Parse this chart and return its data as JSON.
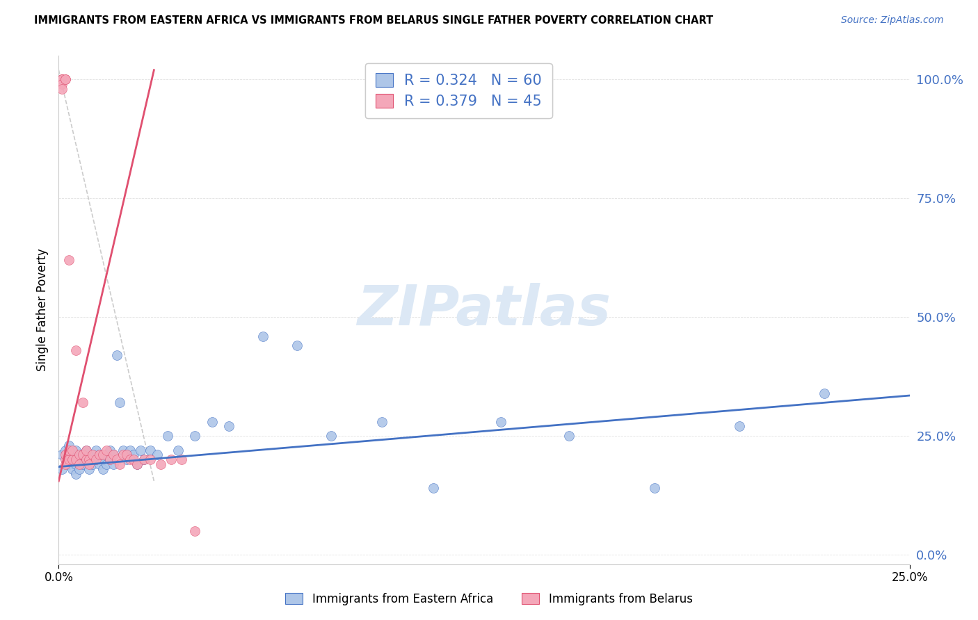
{
  "title": "IMMIGRANTS FROM EASTERN AFRICA VS IMMIGRANTS FROM BELARUS SINGLE FATHER POVERTY CORRELATION CHART",
  "source": "Source: ZipAtlas.com",
  "ylabel": "Single Father Poverty",
  "legend_label_blue": "Immigrants from Eastern Africa",
  "legend_label_pink": "Immigrants from Belarus",
  "color_blue": "#aec6e8",
  "color_pink": "#f4a7b9",
  "color_blue_line": "#4472c4",
  "color_pink_line": "#e05070",
  "color_dashed": "#cccccc",
  "color_text_blue": "#4472c4",
  "color_grid": "#e0e0e0",
  "watermark_color": "#dce8f5",
  "xlim": [
    0.0,
    0.25
  ],
  "ylim": [
    -0.02,
    1.05
  ],
  "ytick_vals": [
    0.0,
    0.25,
    0.5,
    0.75,
    1.0
  ],
  "ytick_labels": [
    "0.0%",
    "25.0%",
    "50.0%",
    "75.0%",
    "100.0%"
  ],
  "xtick_vals": [
    0.0,
    0.25
  ],
  "xtick_labels": [
    "0.0%",
    "25.0%"
  ],
  "legend_blue_text": "R = 0.324   N = 60",
  "legend_pink_text": "R = 0.379   N = 45",
  "blue_line_x": [
    0.0,
    0.25
  ],
  "blue_line_y": [
    0.185,
    0.335
  ],
  "pink_line_x": [
    0.0,
    0.028
  ],
  "pink_line_y": [
    0.155,
    1.02
  ],
  "dash_line_x": [
    0.0,
    0.028
  ],
  "dash_line_y": [
    1.02,
    0.155
  ],
  "blue_x": [
    0.001,
    0.001,
    0.002,
    0.002,
    0.003,
    0.003,
    0.003,
    0.004,
    0.004,
    0.005,
    0.005,
    0.005,
    0.006,
    0.006,
    0.007,
    0.007,
    0.008,
    0.008,
    0.009,
    0.009,
    0.01,
    0.01,
    0.011,
    0.011,
    0.012,
    0.012,
    0.013,
    0.013,
    0.014,
    0.014,
    0.015,
    0.015,
    0.016,
    0.016,
    0.017,
    0.018,
    0.019,
    0.02,
    0.021,
    0.022,
    0.023,
    0.024,
    0.025,
    0.027,
    0.029,
    0.032,
    0.035,
    0.04,
    0.045,
    0.05,
    0.06,
    0.07,
    0.08,
    0.095,
    0.11,
    0.13,
    0.15,
    0.175,
    0.2,
    0.225
  ],
  "blue_y": [
    0.21,
    0.18,
    0.2,
    0.22,
    0.19,
    0.21,
    0.23,
    0.18,
    0.2,
    0.19,
    0.22,
    0.17,
    0.2,
    0.18,
    0.21,
    0.19,
    0.2,
    0.22,
    0.18,
    0.2,
    0.19,
    0.21,
    0.2,
    0.22,
    0.19,
    0.21,
    0.18,
    0.2,
    0.21,
    0.19,
    0.22,
    0.2,
    0.21,
    0.19,
    0.42,
    0.32,
    0.22,
    0.2,
    0.22,
    0.21,
    0.19,
    0.22,
    0.2,
    0.22,
    0.21,
    0.25,
    0.22,
    0.25,
    0.28,
    0.27,
    0.46,
    0.44,
    0.25,
    0.28,
    0.14,
    0.28,
    0.25,
    0.14,
    0.27,
    0.34
  ],
  "pink_x": [
    0.001,
    0.001,
    0.001,
    0.001,
    0.001,
    0.002,
    0.002,
    0.002,
    0.002,
    0.002,
    0.003,
    0.003,
    0.003,
    0.004,
    0.004,
    0.005,
    0.005,
    0.006,
    0.006,
    0.007,
    0.007,
    0.008,
    0.008,
    0.009,
    0.009,
    0.01,
    0.011,
    0.012,
    0.013,
    0.014,
    0.015,
    0.016,
    0.017,
    0.018,
    0.019,
    0.02,
    0.021,
    0.022,
    0.023,
    0.025,
    0.027,
    0.03,
    0.033,
    0.036,
    0.04
  ],
  "pink_y": [
    1.0,
    1.0,
    1.0,
    0.99,
    0.98,
    1.0,
    1.0,
    0.2,
    0.19,
    0.21,
    0.2,
    0.22,
    0.62,
    0.2,
    0.22,
    0.43,
    0.2,
    0.21,
    0.19,
    0.32,
    0.21,
    0.2,
    0.22,
    0.2,
    0.19,
    0.21,
    0.2,
    0.21,
    0.21,
    0.22,
    0.2,
    0.21,
    0.2,
    0.19,
    0.21,
    0.21,
    0.2,
    0.2,
    0.19,
    0.2,
    0.2,
    0.19,
    0.2,
    0.2,
    0.05
  ]
}
